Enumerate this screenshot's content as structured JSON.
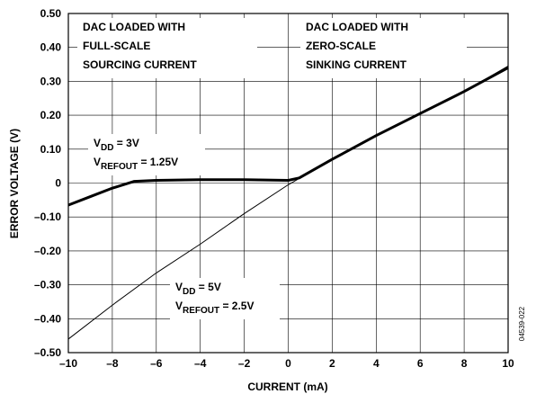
{
  "chart_data": {
    "type": "line",
    "x_label": "CURRENT (mA)",
    "y_label": "ERROR VOLTAGE (V)",
    "xlim": [
      -10,
      10
    ],
    "xticks": [
      {
        "value": -10,
        "label": "–10"
      },
      {
        "value": -8,
        "label": "–8"
      },
      {
        "value": -6,
        "label": "–6"
      },
      {
        "value": -4,
        "label": "–4"
      },
      {
        "value": -2,
        "label": "–2"
      },
      0,
      2,
      4,
      6,
      8,
      10
    ],
    "ylim": [
      -0.5,
      0.5
    ],
    "yticks": [
      {
        "value": -0.5,
        "label": "–0.50"
      },
      {
        "value": -0.4,
        "label": "–0.40"
      },
      {
        "value": -0.3,
        "label": "–0.30"
      },
      {
        "value": -0.2,
        "label": "–0.20"
      },
      {
        "value": -0.1,
        "label": "–0.10"
      },
      0,
      {
        "value": 0.1,
        "label": "0.10"
      },
      {
        "value": 0.2,
        "label": "0.20"
      },
      {
        "value": 0.3,
        "label": "0.30"
      },
      {
        "value": 0.4,
        "label": "0.40"
      },
      {
        "value": 0.5,
        "label": "0.50"
      }
    ],
    "grid": true,
    "series": [
      {
        "color": "#000000",
        "width": 3,
        "x": [
          -10,
          -9,
          -8,
          -7,
          -6,
          -4,
          -2,
          0,
          0.5,
          2,
          4,
          6,
          8,
          10
        ],
        "values": [
          -0.065,
          -0.04,
          -0.015,
          0.005,
          0.008,
          0.01,
          0.01,
          0.008,
          0.015,
          0.07,
          0.14,
          0.205,
          0.27,
          0.34
        ]
      },
      {
        "color": "#000000",
        "width": 1,
        "x": [
          -10,
          -8,
          -6,
          -4,
          -2,
          0,
          2,
          4,
          6,
          8,
          10
        ],
        "values": [
          -0.46,
          -0.36,
          -0.265,
          -0.18,
          -0.09,
          -0.005,
          0.07,
          0.14,
          0.205,
          0.27,
          0.345
        ]
      }
    ],
    "annotations": [
      {
        "lines": [
          [
            "DAC LOADED WITH"
          ],
          [
            "FULL-SCALE"
          ],
          [
            "SOURCING CURRENT"
          ]
        ]
      },
      {
        "lines": [
          [
            "DAC LOADED WITH"
          ],
          [
            "ZERO-SCALE"
          ],
          [
            "SINKING CURRENT"
          ]
        ]
      },
      {
        "lines": [
          [
            "V",
            "DD",
            " = 3V"
          ],
          [
            "V",
            "REFOUT",
            " = 1.25V"
          ]
        ]
      },
      {
        "lines": [
          [
            "V",
            "DD",
            " = 5V"
          ],
          [
            "V",
            "REFOUT",
            " = 2.5V"
          ]
        ]
      }
    ],
    "figure_id": "04539-022"
  }
}
